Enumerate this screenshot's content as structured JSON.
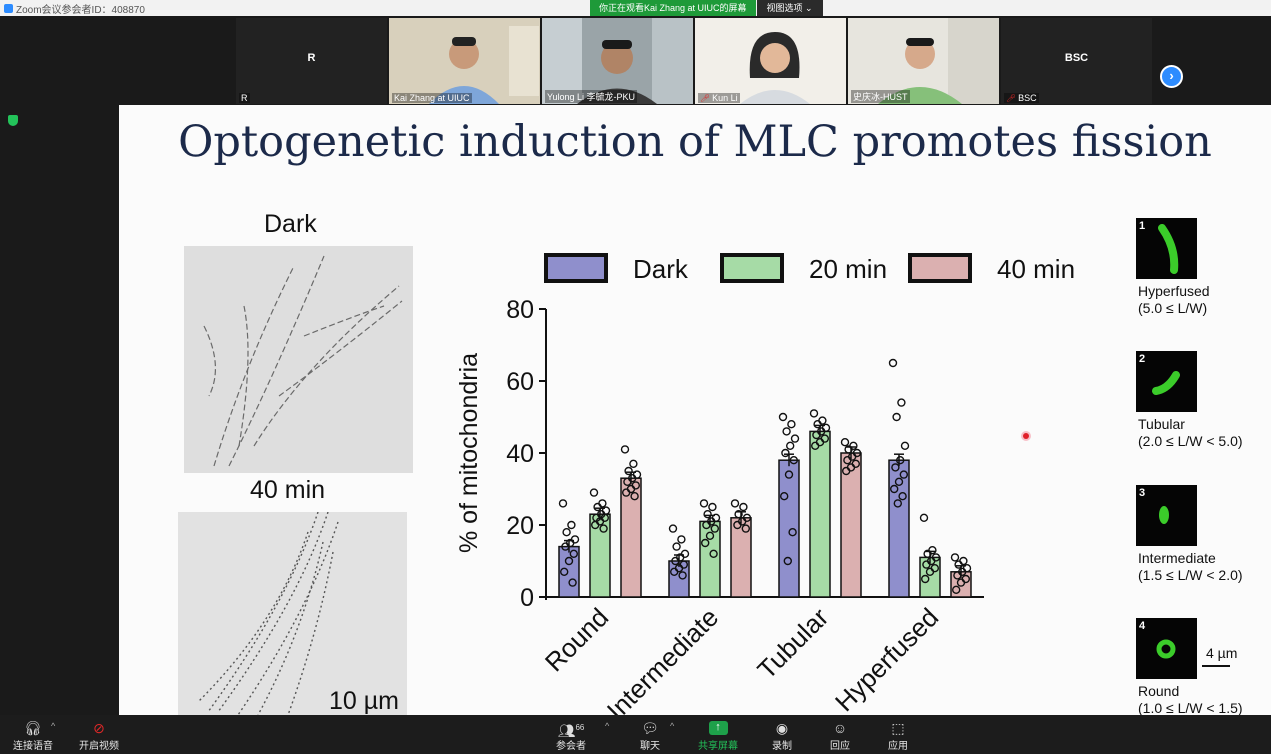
{
  "window": {
    "title": "Zoom会议参会者ID：408870"
  },
  "share_banner": {
    "message": "你正在观看Kai Zhang at UIUC的屏幕",
    "view_options": "视图选项 ⌄"
  },
  "participants": [
    {
      "name": "R",
      "center_label": "R",
      "video": false,
      "muted": false
    },
    {
      "name": "Kai Zhang at UIUC",
      "video": true,
      "muted": false
    },
    {
      "name": "Yulong Li 李毓龙-PKU",
      "video": true,
      "muted": false
    },
    {
      "name": "Kun Li",
      "video": true,
      "muted": true
    },
    {
      "name": "史庆冰-HUST",
      "video": true,
      "muted": false
    },
    {
      "name": "BSC",
      "center_label": "BSC",
      "video": false,
      "muted": true
    }
  ],
  "slide": {
    "title": "Optogenetic induction of MLC promotes fission",
    "panel_labels": {
      "dark": "Dark",
      "min40": "40 min",
      "scale": "10 µm"
    },
    "categories": [
      {
        "num": "1",
        "name": "Hyperfused",
        "range": "(5.0 ≤ L/W)"
      },
      {
        "num": "2",
        "name": "Tubular",
        "range": "(2.0 ≤ L/W < 5.0)"
      },
      {
        "num": "3",
        "name": "Intermediate",
        "range": "(1.5 ≤ L/W < 2.0)"
      },
      {
        "num": "4",
        "name": "Round",
        "range": "(1.0 ≤ L/W < 1.5)"
      }
    ],
    "thumb_scale": "4 µm"
  },
  "chart_data": {
    "type": "bar",
    "categories": [
      "Round",
      "Intermediate",
      "Tubular",
      "Hyperfused"
    ],
    "ylabel": "% of mitochondria",
    "ylim": [
      0,
      80
    ],
    "yticks": [
      "0",
      "20",
      "40",
      "60",
      "80"
    ],
    "legend_placement": "top",
    "series": [
      {
        "name": "Dark",
        "color": "#8f8fcc",
        "values": [
          14,
          10,
          38,
          38
        ],
        "points": [
          [
            26,
            20,
            18,
            16,
            15,
            14,
            12,
            10,
            7,
            4
          ],
          [
            19,
            16,
            14,
            12,
            11,
            10,
            9,
            8,
            7,
            6
          ],
          [
            50,
            48,
            46,
            44,
            42,
            40,
            38,
            34,
            28,
            18,
            10
          ],
          [
            65,
            54,
            50,
            42,
            38,
            36,
            34,
            32,
            30,
            28,
            26
          ]
        ]
      },
      {
        "name": "20 min",
        "color": "#a6dba6",
        "values": [
          23,
          21,
          46,
          11
        ],
        "points": [
          [
            29,
            26,
            25,
            24,
            23,
            22,
            22,
            21,
            20,
            19
          ],
          [
            26,
            25,
            23,
            22,
            21,
            20,
            19,
            17,
            15,
            12
          ],
          [
            51,
            49,
            48,
            47,
            46,
            45,
            44,
            43,
            42
          ],
          [
            22,
            13,
            12,
            11,
            10,
            9,
            8,
            7,
            5
          ]
        ]
      },
      {
        "name": "40 min",
        "color": "#dbb0b0",
        "values": [
          33,
          22,
          40,
          7
        ],
        "points": [
          [
            41,
            37,
            35,
            34,
            33,
            32,
            31,
            30,
            29,
            28
          ],
          [
            26,
            25,
            23,
            22,
            21,
            20,
            19
          ],
          [
            43,
            42,
            41,
            40,
            39,
            38,
            37,
            36,
            35
          ],
          [
            11,
            10,
            9,
            8,
            7,
            6,
            5,
            4,
            2
          ]
        ]
      }
    ]
  },
  "toolbar": {
    "join_audio": "连接语音",
    "start_video": "开启视频",
    "participants": "参会者",
    "participant_count": "66",
    "chat": "聊天",
    "share_screen": "共享屏幕",
    "record": "录制",
    "reactions": "回应",
    "apps": "应用"
  }
}
